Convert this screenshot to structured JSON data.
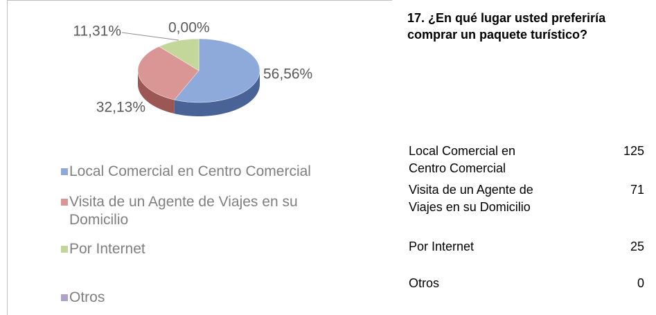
{
  "chart_data": {
    "type": "pie",
    "categories": [
      "Local Comercial en Centro Comercial",
      "Visita de un Agente de Viajes en su Domicilio",
      "Por Internet",
      "Otros"
    ],
    "values": [
      56.56,
      32.13,
      11.31,
      0
    ],
    "value_labels": [
      "56,56%",
      "32,13%",
      "11,31%",
      "0,00%"
    ],
    "colors": [
      "#8eaadb",
      "#da9694",
      "#c4d79b",
      "#b1a0c7"
    ],
    "side_colors": [
      "#4a6396",
      "#9c5654",
      "#8a9e5e",
      "#7a6a91"
    ],
    "legend": "bottom"
  },
  "question": "17.  ¿En qué lugar usted preferiría comprar un paquete turístico?",
  "table": {
    "rows": [
      [
        "Local Comercial en Centro Comercial",
        125
      ],
      [
        "Visita de un Agente de Viajes en su Domicilio",
        71
      ],
      [
        "Por Internet",
        25
      ],
      [
        "Otros",
        0
      ]
    ]
  }
}
